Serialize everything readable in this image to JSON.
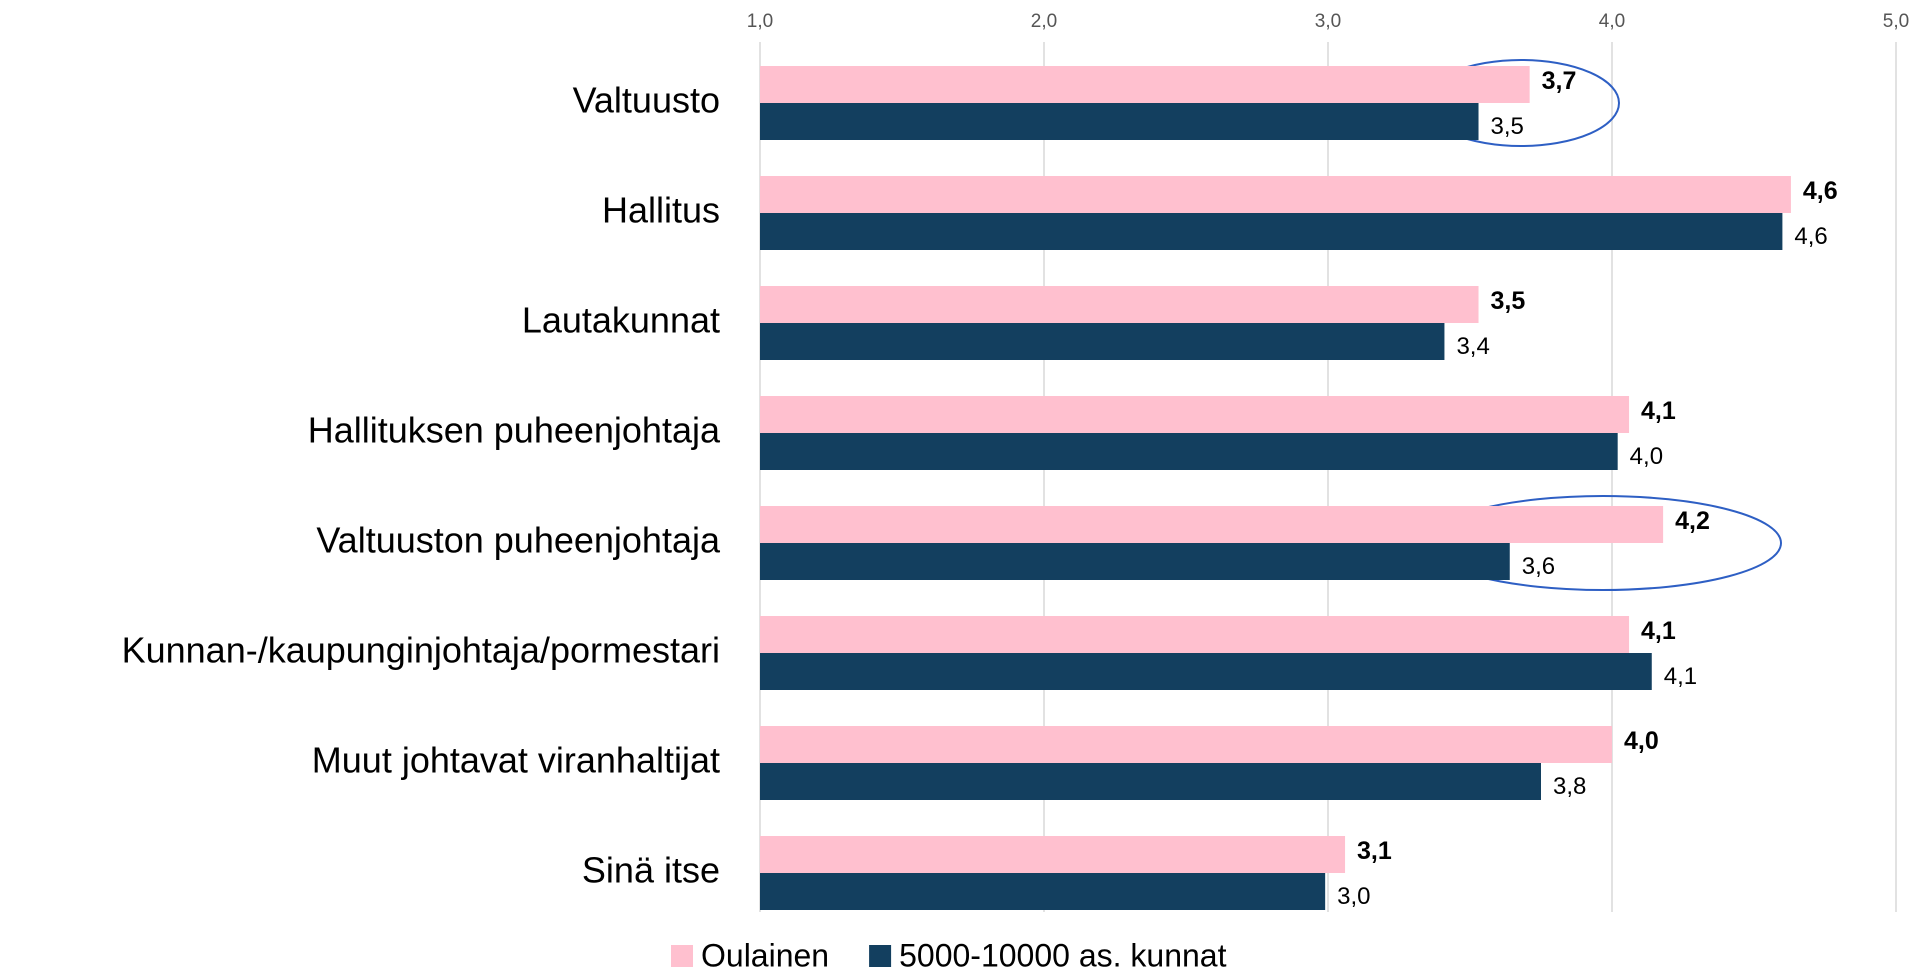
{
  "chart_data": {
    "type": "barh",
    "categories": [
      "Valtuusto",
      "Hallitus",
      "Lautakunnat",
      "Hallituksen puheenjohtaja",
      "Valtuuston puheenjohtaja",
      "Kunnan-/kaupunginjohtaja/pormestari",
      "Muut johtavat viranhaltijat",
      "Sinä itse"
    ],
    "series": [
      {
        "name": "Oulainen",
        "color": "#ffc0cf",
        "values": [
          3.71,
          4.63,
          3.53,
          4.06,
          4.18,
          4.06,
          4.0,
          3.06
        ],
        "value_labels": [
          "3,7",
          "4,6",
          "3,5",
          "4,1",
          "4,2",
          "4,1",
          "4,0",
          "3,1"
        ]
      },
      {
        "name": "5000-10000 as. kunnat",
        "color": "#133f5f",
        "values": [
          3.53,
          4.6,
          3.41,
          4.02,
          3.64,
          4.14,
          3.75,
          2.99
        ],
        "value_labels": [
          "3,5",
          "4,6",
          "3,4",
          "4,0",
          "3,6",
          "4,1",
          "3,8",
          "3,0"
        ]
      }
    ],
    "xlim": [
      1,
      5
    ],
    "xticks": [
      {
        "value": 1,
        "label": "1,0"
      },
      {
        "value": 2,
        "label": "2,0"
      },
      {
        "value": 3,
        "label": "3,0"
      },
      {
        "value": 4,
        "label": "4,0"
      },
      {
        "value": 5,
        "label": "5,0"
      }
    ],
    "grid": true,
    "legend": "bottom"
  }
}
